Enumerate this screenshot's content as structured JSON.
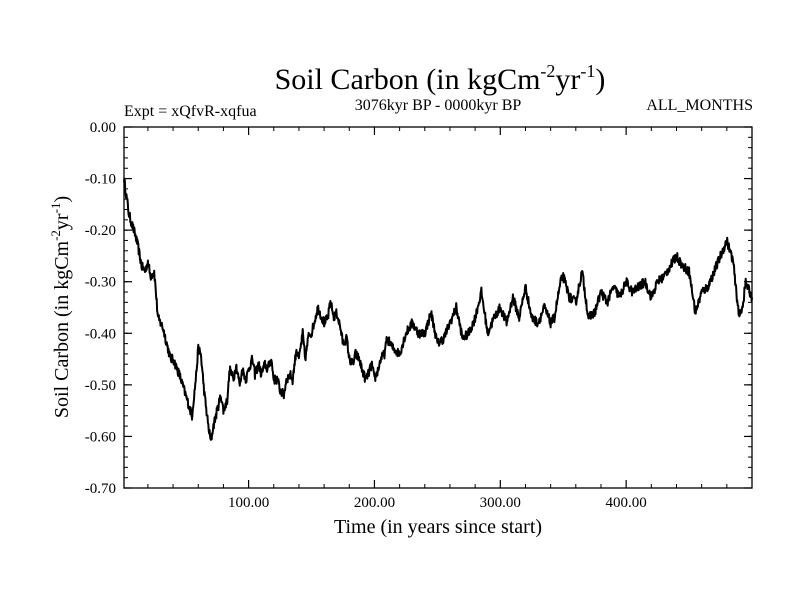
{
  "chart_data": {
    "type": "line",
    "title": "Soil Carbon (in kgCm",
    "title_sup1": "-2",
    "title_mid": "yr",
    "title_sup2": "-1",
    "title_end": ")",
    "subtitle_left": "Expt = xQfvR-xqfua",
    "subtitle_center": "3076kyr BP - 0000kyr BP",
    "subtitle_right": "ALL_MONTHS",
    "xlabel": "Time (in years since start)",
    "ylabel": "Soil Carbon (in kgCm",
    "ylabel_sup1": "-2",
    "ylabel_mid": "yr",
    "ylabel_sup2": "-1",
    "ylabel_end": ")",
    "xlim": [
      1,
      500
    ],
    "ylim": [
      -0.7,
      0.0
    ],
    "x_ticks": [
      100,
      200,
      300,
      400
    ],
    "x_tick_labels": [
      "100.00",
      "200.00",
      "300.00",
      "400.00"
    ],
    "y_ticks": [
      0,
      -0.1,
      -0.2,
      -0.3,
      -0.4,
      -0.5,
      -0.6,
      -0.7
    ],
    "y_tick_labels": [
      "0.00",
      "-0.10",
      "-0.20",
      "-0.30",
      "-0.40",
      "-0.50",
      "-0.60",
      "-0.70"
    ],
    "grid": false,
    "series": [
      {
        "name": "Soil Carbon",
        "color": "#000000",
        "x": [
          1,
          5,
          10,
          12,
          15,
          18,
          20,
          22,
          25,
          28,
          32,
          35,
          38,
          40,
          45,
          50,
          55,
          58,
          60,
          62,
          65,
          68,
          70,
          72,
          75,
          78,
          80,
          83,
          85,
          88,
          90,
          93,
          95,
          98,
          100,
          103,
          105,
          108,
          110,
          113,
          115,
          118,
          120,
          123,
          125,
          128,
          130,
          133,
          135,
          138,
          140,
          143,
          145,
          148,
          150,
          155,
          160,
          163,
          165,
          168,
          170,
          173,
          175,
          178,
          180,
          183,
          185,
          188,
          190,
          193,
          195,
          198,
          200,
          203,
          205,
          208,
          210,
          215,
          220,
          225,
          230,
          235,
          240,
          245,
          250,
          255,
          260,
          265,
          270,
          275,
          280,
          285,
          290,
          295,
          300,
          305,
          310,
          315,
          320,
          325,
          330,
          335,
          340,
          343,
          345,
          348,
          350,
          355,
          360,
          365,
          370,
          375,
          380,
          385,
          390,
          395,
          400,
          405,
          410,
          415,
          420,
          425,
          430,
          435,
          440,
          445,
          450,
          455,
          460,
          465,
          470,
          475,
          480,
          485,
          487,
          490,
          493,
          495,
          498,
          500
        ],
        "y": [
          -0.1,
          -0.17,
          -0.21,
          -0.23,
          -0.27,
          -0.28,
          -0.26,
          -0.29,
          -0.28,
          -0.37,
          -0.39,
          -0.42,
          -0.45,
          -0.45,
          -0.48,
          -0.52,
          -0.56,
          -0.49,
          -0.43,
          -0.44,
          -0.52,
          -0.58,
          -0.61,
          -0.58,
          -0.55,
          -0.52,
          -0.55,
          -0.53,
          -0.47,
          -0.49,
          -0.46,
          -0.5,
          -0.47,
          -0.49,
          -0.47,
          -0.45,
          -0.48,
          -0.46,
          -0.48,
          -0.46,
          -0.47,
          -0.45,
          -0.49,
          -0.49,
          -0.51,
          -0.52,
          -0.49,
          -0.48,
          -0.49,
          -0.43,
          -0.45,
          -0.4,
          -0.45,
          -0.4,
          -0.4,
          -0.35,
          -0.38,
          -0.37,
          -0.34,
          -0.37,
          -0.36,
          -0.39,
          -0.42,
          -0.41,
          -0.45,
          -0.46,
          -0.44,
          -0.45,
          -0.47,
          -0.49,
          -0.48,
          -0.46,
          -0.49,
          -0.47,
          -0.45,
          -0.44,
          -0.41,
          -0.43,
          -0.44,
          -0.4,
          -0.38,
          -0.4,
          -0.4,
          -0.36,
          -0.42,
          -0.41,
          -0.38,
          -0.35,
          -0.41,
          -0.4,
          -0.37,
          -0.32,
          -0.4,
          -0.37,
          -0.35,
          -0.38,
          -0.33,
          -0.37,
          -0.31,
          -0.37,
          -0.38,
          -0.35,
          -0.38,
          -0.37,
          -0.34,
          -0.3,
          -0.29,
          -0.33,
          -0.34,
          -0.28,
          -0.37,
          -0.36,
          -0.32,
          -0.34,
          -0.31,
          -0.33,
          -0.3,
          -0.32,
          -0.31,
          -0.3,
          -0.33,
          -0.3,
          -0.29,
          -0.27,
          -0.25,
          -0.27,
          -0.28,
          -0.36,
          -0.32,
          -0.31,
          -0.28,
          -0.25,
          -0.22,
          -0.26,
          -0.31,
          -0.37,
          -0.34,
          -0.3,
          -0.32,
          -0.33
        ]
      }
    ]
  }
}
